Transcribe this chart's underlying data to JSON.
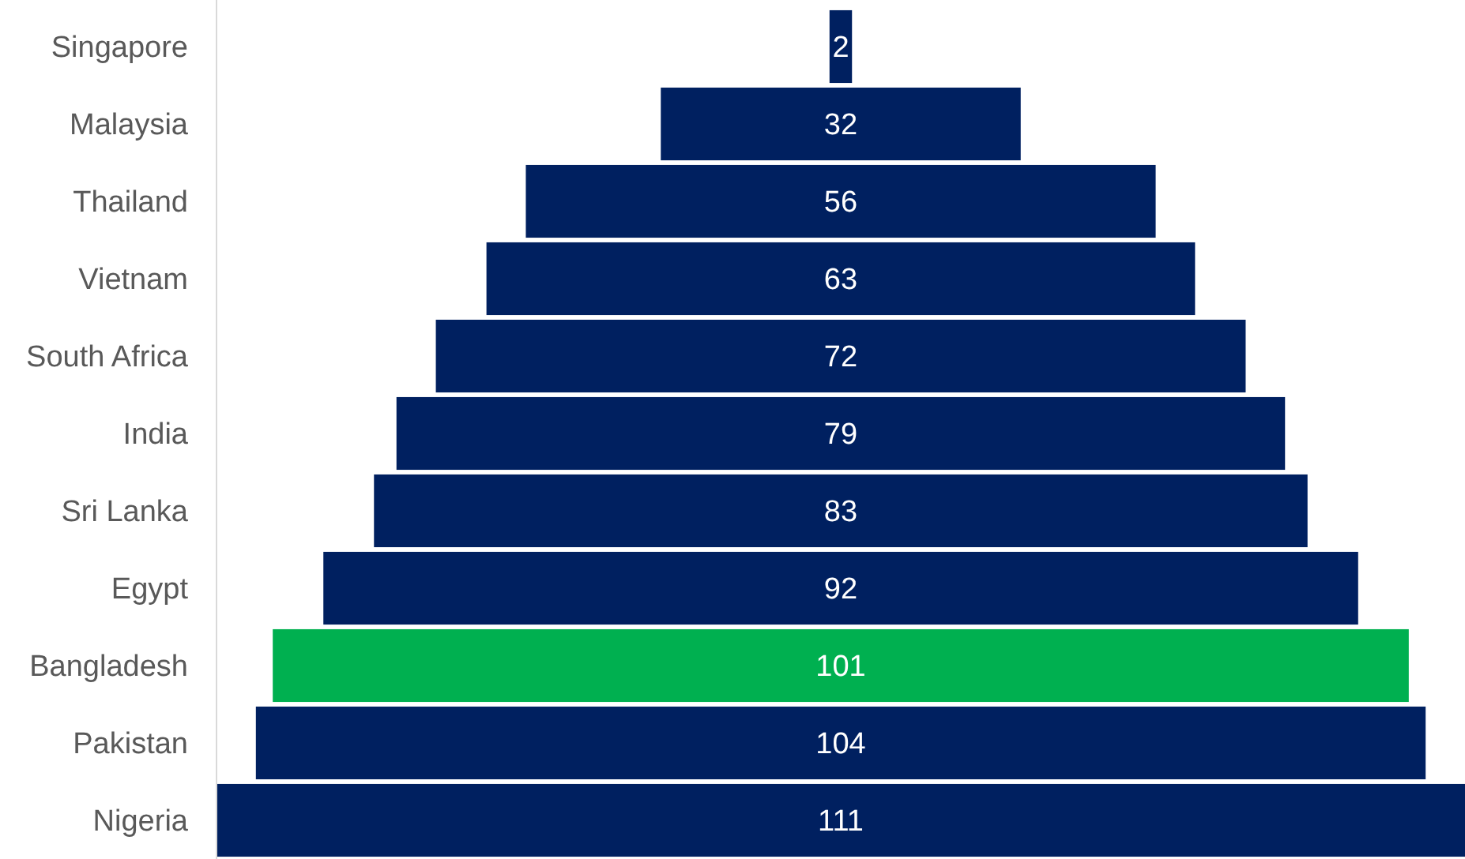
{
  "chart_data": {
    "type": "other",
    "categories": [
      "Singapore",
      "Malaysia",
      "Thailand",
      "Vietnam",
      "South Africa",
      "India",
      "Sri Lanka",
      "Egypt",
      "Bangladesh",
      "Pakistan",
      "Nigeria"
    ],
    "values": [
      2,
      32,
      56,
      63,
      72,
      79,
      83,
      92,
      101,
      104,
      111
    ],
    "colors": [
      "#002060",
      "#002060",
      "#002060",
      "#002060",
      "#002060",
      "#002060",
      "#002060",
      "#002060",
      "#00b050",
      "#002060",
      "#002060"
    ],
    "data_labels": true
  }
}
